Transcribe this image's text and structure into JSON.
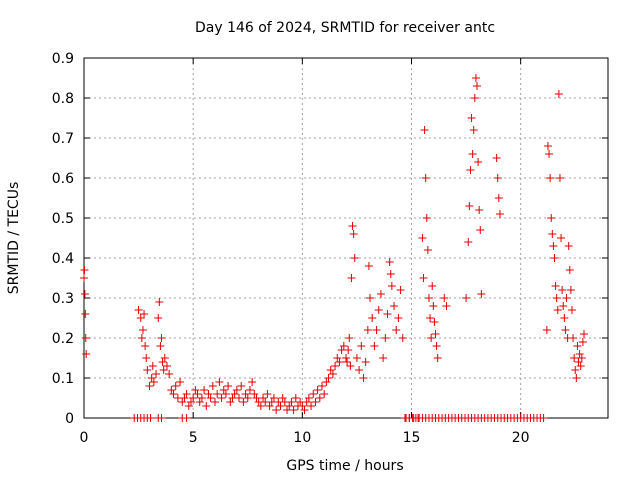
{
  "chart_data": {
    "type": "scatter",
    "title": "Day 146 of 2024, SRMTID for receiver antc",
    "xlabel": "GPS time / hours",
    "ylabel": "SRMTID / TECUs",
    "xlim": [
      0,
      24
    ],
    "ylim": [
      0,
      0.9
    ],
    "xticks": [
      0,
      5,
      10,
      15,
      20
    ],
    "xtick_labels": [
      "0",
      "5",
      "10",
      "15",
      "20"
    ],
    "yticks": [
      0,
      0.1,
      0.2,
      0.3,
      0.4,
      0.5,
      0.6,
      0.7,
      0.8,
      0.9
    ],
    "ytick_labels": [
      "0",
      "0.1",
      "0.2",
      "0.3",
      "0.4",
      "0.5",
      "0.6",
      "0.7",
      "0.8",
      "0.9"
    ],
    "grid": true,
    "marker": "+",
    "marker_color": "#e00000",
    "series": [
      {
        "name": "SRMTID",
        "x": [
          0.0,
          0.02,
          0.04,
          0.06,
          0.08,
          0.1,
          2.5,
          2.6,
          2.65,
          2.7,
          2.75,
          2.8,
          2.85,
          2.9,
          3.0,
          3.1,
          3.15,
          3.2,
          3.3,
          3.4,
          3.45,
          3.5,
          3.55,
          3.6,
          3.65,
          3.7,
          3.8,
          3.9,
          4.0,
          4.1,
          4.2,
          4.3,
          4.4,
          4.5,
          4.6,
          4.7,
          4.8,
          4.9,
          5.0,
          5.1,
          5.2,
          5.3,
          5.4,
          5.5,
          5.6,
          5.7,
          5.8,
          5.9,
          6.0,
          6.1,
          6.2,
          6.3,
          6.4,
          6.5,
          6.6,
          6.7,
          6.8,
          6.9,
          7.0,
          7.1,
          7.2,
          7.3,
          7.4,
          7.5,
          7.6,
          7.7,
          7.8,
          7.9,
          8.0,
          8.1,
          8.2,
          8.3,
          8.4,
          8.5,
          8.6,
          8.7,
          8.8,
          8.9,
          9.0,
          9.1,
          9.2,
          9.3,
          9.4,
          9.5,
          9.6,
          9.7,
          9.8,
          9.9,
          10.0,
          10.1,
          10.2,
          10.3,
          10.4,
          10.5,
          10.6,
          10.7,
          10.8,
          10.9,
          11.0,
          11.1,
          11.2,
          11.3,
          11.4,
          11.5,
          11.6,
          11.7,
          11.8,
          11.9,
          12.0,
          12.05,
          12.1,
          12.15,
          12.2,
          12.25,
          12.3,
          12.35,
          12.4,
          12.5,
          12.6,
          12.7,
          12.8,
          12.9,
          13.0,
          13.05,
          13.1,
          13.2,
          13.3,
          13.4,
          13.5,
          13.6,
          13.7,
          13.8,
          13.9,
          14.0,
          14.05,
          14.1,
          14.2,
          14.3,
          14.4,
          14.5,
          14.6,
          14.7,
          14.9,
          15.1,
          15.3,
          15.5,
          15.55,
          15.6,
          15.65,
          15.7,
          15.75,
          15.8,
          15.85,
          15.9,
          15.95,
          16.0,
          16.05,
          16.1,
          16.15,
          16.2,
          16.5,
          16.6,
          17.5,
          17.6,
          17.65,
          17.7,
          17.75,
          17.8,
          17.85,
          17.9,
          17.95,
          18.0,
          18.05,
          18.1,
          18.15,
          18.2,
          18.9,
          18.95,
          19.0,
          19.05,
          21.2,
          21.25,
          21.3,
          21.35,
          21.4,
          21.45,
          21.5,
          21.55,
          21.6,
          21.65,
          21.7,
          21.75,
          21.8,
          21.85,
          21.9,
          21.95,
          22.0,
          22.05,
          22.1,
          22.15,
          22.2,
          22.25,
          22.3,
          22.35,
          22.4,
          22.45,
          22.5,
          22.55,
          22.6,
          22.65,
          22.7,
          22.75,
          22.8,
          22.85,
          22.9,
          2.3,
          2.45,
          2.6,
          2.75,
          2.9,
          3.05,
          3.4,
          3.55,
          4.5,
          4.7,
          14.75,
          14.9,
          15.05,
          15.2,
          15.35,
          15.5,
          15.65,
          15.8,
          15.95,
          16.1,
          16.25,
          16.4,
          16.55,
          16.7,
          16.85,
          17.0,
          17.15,
          17.3,
          17.45,
          17.6,
          17.75,
          17.9,
          18.05,
          18.2,
          18.35,
          18.5,
          18.65,
          18.8,
          18.95,
          19.1,
          19.25,
          19.4,
          19.55,
          19.7,
          19.85,
          20.0,
          20.15,
          20.3,
          20.45,
          20.6,
          20.75,
          20.9,
          21.05
        ],
        "y": [
          0.35,
          0.37,
          0.31,
          0.26,
          0.2,
          0.16,
          0.27,
          0.25,
          0.2,
          0.22,
          0.26,
          0.18,
          0.15,
          0.12,
          0.08,
          0.1,
          0.13,
          0.09,
          0.11,
          0.25,
          0.29,
          0.18,
          0.2,
          0.14,
          0.12,
          0.15,
          0.13,
          0.11,
          0.07,
          0.06,
          0.08,
          0.05,
          0.09,
          0.04,
          0.05,
          0.06,
          0.03,
          0.04,
          0.05,
          0.07,
          0.06,
          0.04,
          0.05,
          0.07,
          0.03,
          0.06,
          0.05,
          0.08,
          0.04,
          0.06,
          0.09,
          0.05,
          0.07,
          0.06,
          0.08,
          0.04,
          0.05,
          0.06,
          0.07,
          0.05,
          0.08,
          0.04,
          0.06,
          0.05,
          0.07,
          0.09,
          0.06,
          0.05,
          0.04,
          0.03,
          0.05,
          0.04,
          0.06,
          0.03,
          0.04,
          0.05,
          0.02,
          0.04,
          0.03,
          0.05,
          0.04,
          0.02,
          0.03,
          0.04,
          0.02,
          0.05,
          0.03,
          0.04,
          0.03,
          0.02,
          0.04,
          0.05,
          0.03,
          0.06,
          0.04,
          0.07,
          0.05,
          0.08,
          0.06,
          0.09,
          0.1,
          0.12,
          0.11,
          0.13,
          0.15,
          0.14,
          0.17,
          0.18,
          0.15,
          0.14,
          0.17,
          0.2,
          0.13,
          0.35,
          0.48,
          0.46,
          0.4,
          0.15,
          0.12,
          0.18,
          0.1,
          0.14,
          0.22,
          0.38,
          0.3,
          0.25,
          0.18,
          0.22,
          0.27,
          0.31,
          0.15,
          0.2,
          0.26,
          0.39,
          0.36,
          0.33,
          0.28,
          0.22,
          0.25,
          0.32,
          0.2,
          0.0,
          0.0,
          0.0,
          0.0,
          0.45,
          0.35,
          0.72,
          0.6,
          0.5,
          0.42,
          0.3,
          0.25,
          0.2,
          0.33,
          0.28,
          0.24,
          0.21,
          0.18,
          0.15,
          0.3,
          0.28,
          0.3,
          0.44,
          0.53,
          0.62,
          0.75,
          0.66,
          0.72,
          0.8,
          0.85,
          0.83,
          0.64,
          0.52,
          0.47,
          0.31,
          0.65,
          0.6,
          0.55,
          0.51,
          0.22,
          0.68,
          0.66,
          0.6,
          0.5,
          0.46,
          0.43,
          0.4,
          0.33,
          0.3,
          0.27,
          0.81,
          0.6,
          0.45,
          0.32,
          0.28,
          0.25,
          0.22,
          0.3,
          0.2,
          0.43,
          0.37,
          0.32,
          0.27,
          0.2,
          0.15,
          0.12,
          0.1,
          0.18,
          0.14,
          0.16,
          0.13,
          0.15,
          0.19,
          0.21,
          0,
          0,
          0,
          0,
          0,
          0,
          0,
          0,
          0,
          0,
          0,
          0,
          0,
          0,
          0,
          0,
          0,
          0,
          0,
          0,
          0,
          0,
          0,
          0,
          0,
          0,
          0,
          0,
          0,
          0,
          0,
          0,
          0,
          0,
          0,
          0,
          0,
          0,
          0,
          0,
          0,
          0,
          0,
          0,
          0,
          0,
          0,
          0,
          0,
          0,
          0,
          0,
          0
        ]
      }
    ]
  }
}
